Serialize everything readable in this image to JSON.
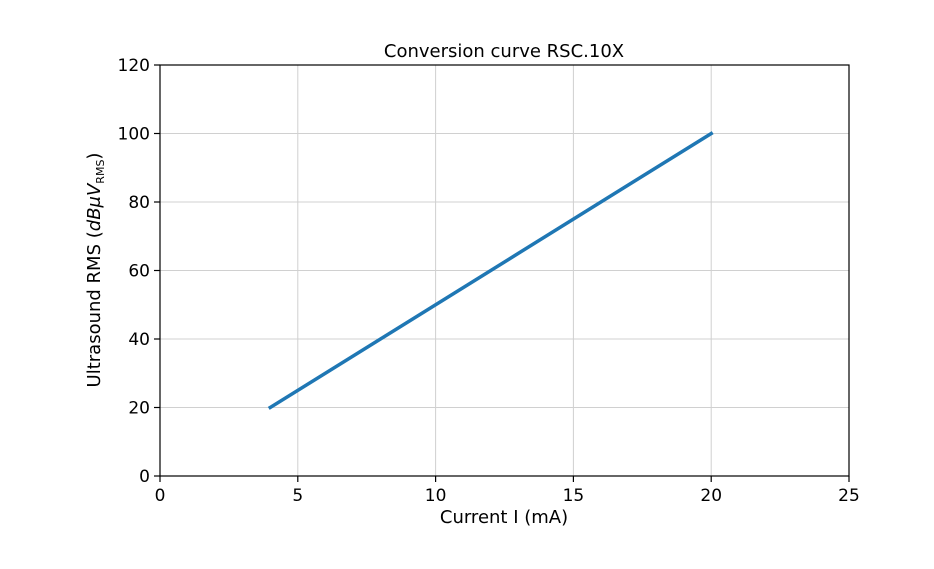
{
  "chart_data": {
    "type": "line",
    "title": "Conversion curve RSC.10X",
    "xlabel": "Current I (mA)",
    "ylabel": {
      "prefix": "Ultrasound RMS (",
      "unit_italic": "dBμV",
      "unit_sub": "RMS",
      "suffix": ")"
    },
    "xlim": [
      0,
      25
    ],
    "ylim": [
      0,
      120
    ],
    "xticks": [
      0,
      5,
      10,
      15,
      20,
      25
    ],
    "yticks": [
      0,
      20,
      40,
      60,
      80,
      100,
      120
    ],
    "grid": true,
    "series": [
      {
        "x": [
          4,
          20
        ],
        "y": [
          20,
          100
        ],
        "color": "#1f77b4"
      }
    ]
  }
}
